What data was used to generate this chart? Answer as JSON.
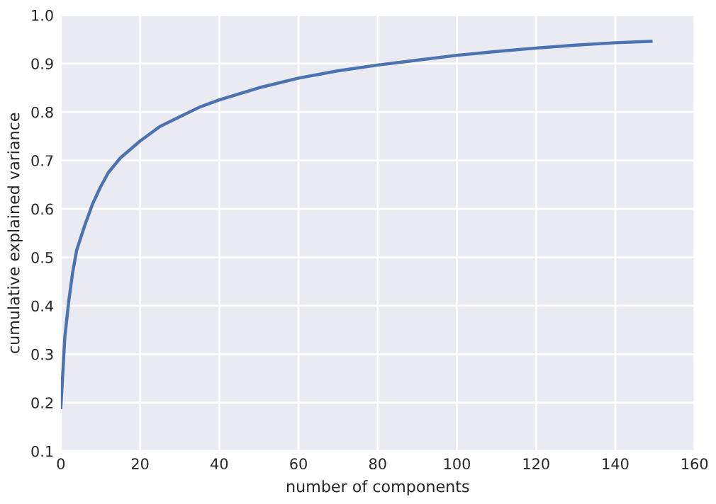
{
  "chart_data": {
    "type": "line",
    "xlabel": "number of components",
    "ylabel": "cumulative explained variance",
    "x": [
      0,
      1,
      2,
      3,
      4,
      6,
      8,
      10,
      12,
      15,
      20,
      25,
      30,
      35,
      40,
      50,
      60,
      70,
      80,
      90,
      100,
      110,
      120,
      130,
      140,
      149
    ],
    "series": [
      {
        "color": "#4c72b0",
        "values": [
          0.19,
          0.335,
          0.41,
          0.47,
          0.515,
          0.565,
          0.61,
          0.645,
          0.675,
          0.705,
          0.74,
          0.77,
          0.79,
          0.81,
          0.825,
          0.85,
          0.87,
          0.885,
          0.897,
          0.907,
          0.917,
          0.925,
          0.932,
          0.938,
          0.943,
          0.946
        ]
      }
    ],
    "xlim": [
      0,
      160
    ],
    "ylim": [
      0.1,
      1.0
    ],
    "xticks": [
      0,
      20,
      40,
      60,
      80,
      100,
      120,
      140,
      160
    ],
    "yticks": [
      0.1,
      0.2,
      0.3,
      0.4,
      0.5,
      0.6,
      0.7,
      0.8,
      0.9,
      {
        "value": 1.0,
        "label": "1.0"
      }
    ],
    "grid": true,
    "legend": false
  }
}
